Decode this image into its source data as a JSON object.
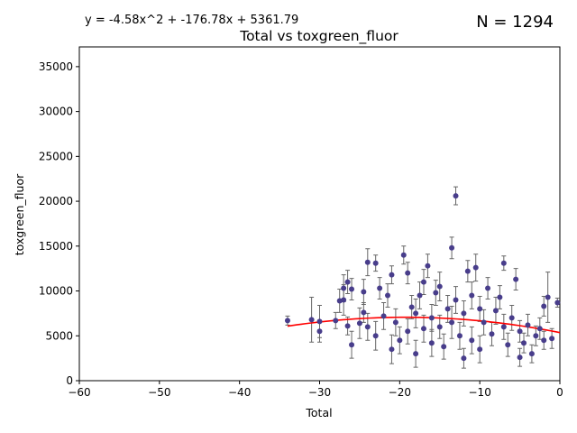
{
  "chart_data": {
    "type": "scatter",
    "title": "Total vs toxgreen_fluor",
    "equation": "y = -4.58x^2 + -176.78x + 5361.79",
    "n_label": "N = 1294",
    "xlabel": "Total",
    "ylabel": "toxgreen_fluor",
    "xlim": [
      -60,
      0
    ],
    "ylim": [
      0,
      37200
    ],
    "x_ticks": [
      -60,
      -50,
      -40,
      -30,
      -20,
      -10,
      0
    ],
    "y_ticks": [
      0,
      5000,
      10000,
      15000,
      20000,
      25000,
      30000,
      35000
    ],
    "grid": false,
    "fit": {
      "a": -4.58,
      "b": -176.78,
      "c": 5361.79,
      "x_range": [
        -34,
        0
      ],
      "color": "#ff0000"
    },
    "point_color": "#483d8b",
    "errorbar_color": "#666666",
    "series": [
      {
        "points": [
          [
            -34,
            6700,
            500
          ],
          [
            -31,
            6800,
            2500
          ],
          [
            -30,
            6600,
            1800
          ],
          [
            -30,
            5500,
            1200
          ],
          [
            -28,
            6700,
            900
          ],
          [
            -27.5,
            8900,
            1300
          ],
          [
            -27,
            10300,
            1500
          ],
          [
            -27,
            9000,
            1700
          ],
          [
            -26.5,
            11000,
            1300
          ],
          [
            -26.5,
            6100,
            1000
          ],
          [
            -26,
            4000,
            1500
          ],
          [
            -26,
            10200,
            1200
          ],
          [
            -25,
            6400,
            1700
          ],
          [
            -24.5,
            9900,
            1400
          ],
          [
            -24.5,
            7600,
            1100
          ],
          [
            -24,
            13200,
            1500
          ],
          [
            -24,
            6000,
            1500
          ],
          [
            -23,
            13100,
            900
          ],
          [
            -23,
            5000,
            1600
          ],
          [
            -22.5,
            10300,
            1200
          ],
          [
            -22,
            7200,
            1500
          ],
          [
            -21.5,
            9500,
            1300
          ],
          [
            -21,
            3500,
            1600
          ],
          [
            -21,
            11800,
            1000
          ],
          [
            -20.5,
            6500,
            1500
          ],
          [
            -20,
            4500,
            1500
          ],
          [
            -19.5,
            14000,
            1000
          ],
          [
            -19,
            12000,
            1200
          ],
          [
            -19,
            5500,
            1400
          ],
          [
            -18.5,
            8200,
            1300
          ],
          [
            -18,
            3000,
            1500
          ],
          [
            -18,
            7500,
            1600
          ],
          [
            -17.5,
            9500,
            1500
          ],
          [
            -17,
            11000,
            1400
          ],
          [
            -17,
            5800,
            1500
          ],
          [
            -16.5,
            12800,
            1300
          ],
          [
            -16,
            4200,
            1500
          ],
          [
            -16,
            7000,
            1500
          ],
          [
            -15.5,
            9800,
            1400
          ],
          [
            -15,
            6000,
            1300
          ],
          [
            -15,
            10500,
            1600
          ],
          [
            -14.5,
            3800,
            1400
          ],
          [
            -14,
            8000,
            1500
          ],
          [
            -13.5,
            14800,
            1200
          ],
          [
            -13.5,
            6500,
            1800
          ],
          [
            -13,
            20600,
            1000
          ],
          [
            -13,
            9000,
            1500
          ],
          [
            -12.5,
            5000,
            1500
          ],
          [
            -12,
            2500,
            1100
          ],
          [
            -12,
            7500,
            1400
          ],
          [
            -11.5,
            12200,
            1200
          ],
          [
            -11,
            9500,
            1500
          ],
          [
            -11,
            4500,
            1500
          ],
          [
            -10.5,
            12600,
            1500
          ],
          [
            -10,
            8000,
            1400
          ],
          [
            -10,
            3500,
            1500
          ],
          [
            -9.5,
            6500,
            1400
          ],
          [
            -9,
            10300,
            1200
          ],
          [
            -8.5,
            5200,
            1300
          ],
          [
            -8,
            7800,
            1500
          ],
          [
            -7.5,
            9300,
            1300
          ],
          [
            -7,
            13100,
            800
          ],
          [
            -7,
            6000,
            1400
          ],
          [
            -6.5,
            4000,
            1300
          ],
          [
            -6,
            7000,
            1400
          ],
          [
            -5.5,
            11300,
            1200
          ],
          [
            -5,
            2600,
            1000
          ],
          [
            -5,
            5500,
            1200
          ],
          [
            -4.5,
            4200,
            1100
          ],
          [
            -4,
            6200,
            1200
          ],
          [
            -3.5,
            3000,
            1000
          ],
          [
            -3,
            5000,
            1100
          ],
          [
            -2.5,
            5800,
            1200
          ],
          [
            -2,
            8300,
            1100
          ],
          [
            -2,
            4500,
            1000
          ],
          [
            -1.5,
            9300,
            2800
          ],
          [
            -1,
            4700,
            1100
          ],
          [
            -0.3,
            8700,
            500
          ]
        ]
      }
    ]
  }
}
